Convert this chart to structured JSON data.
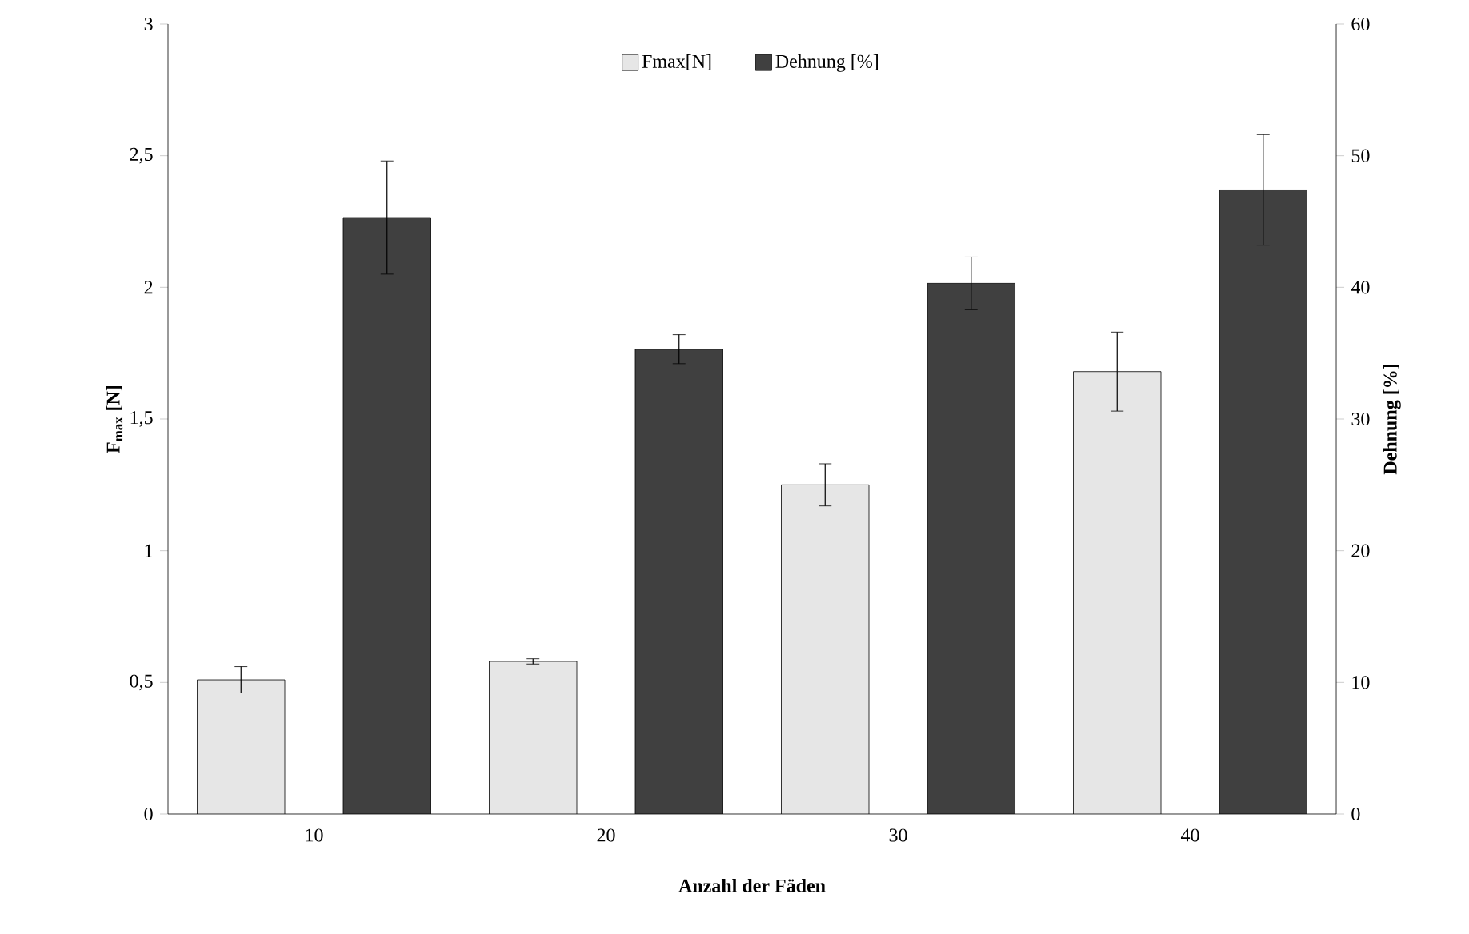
{
  "chart_data": {
    "type": "bar",
    "xlabel": "Anzahl der Fäden",
    "ylabel": "F$_{max}$ [N]",
    "y2label": "Dehnung [%]",
    "categories": [
      "10",
      "20",
      "30",
      "40"
    ],
    "ylim": [
      0,
      3
    ],
    "yticks": [
      0,
      {
        "value": 0.5,
        "label": "0,5"
      },
      1,
      {
        "value": 1.5,
        "label": "1,5"
      },
      2,
      {
        "value": 2.5,
        "label": "2,5"
      },
      3
    ],
    "y2lim": [
      0,
      60
    ],
    "y2ticks": [
      0,
      10,
      20,
      30,
      40,
      50,
      60
    ],
    "legend": "top",
    "series": [
      {
        "name": "Fmax[N]",
        "color": "#e6e6e6",
        "values": [
          0.51,
          0.58,
          1.25,
          1.68
        ],
        "errors": [
          0.05,
          0.01,
          0.08,
          0.15
        ]
      },
      {
        "name": "Dehnung [%]",
        "color": "#404040",
        "axis": "y2",
        "values": [
          45.3,
          35.3,
          40.3,
          47.4
        ],
        "errors": [
          4.3,
          1.1,
          2.0,
          4.2
        ]
      }
    ]
  }
}
